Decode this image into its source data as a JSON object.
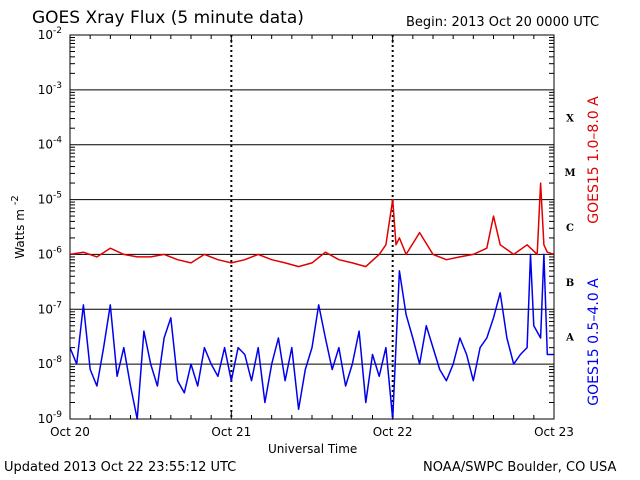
{
  "header": {
    "title": "GOES Xray Flux (5 minute data)",
    "begin": "Begin:  2013 Oct 20 0000 UTC"
  },
  "footer": {
    "updated": "Updated 2013 Oct 22 23:55:12 UTC",
    "credit": "NOAA/SWPC Boulder, CO USA"
  },
  "colors": {
    "long": "#e00000",
    "short": "#0000ee",
    "grid": "#000000"
  },
  "chart_data": {
    "type": "line",
    "title": "GOES Xray Flux (5 minute data)",
    "xlabel": "Universal Time",
    "ylabel": "Watts m",
    "ylabel_sup": "-2",
    "yscale": "log",
    "ylim": [
      1e-09,
      0.01
    ],
    "xlim": [
      "2013-10-20T00:00Z",
      "2013-10-23T00:00Z"
    ],
    "x_tick_labels": [
      "Oct 20",
      "Oct 21",
      "Oct 22",
      "Oct 23"
    ],
    "y_tick_labels": [
      {
        "base": "10",
        "exp": "-9"
      },
      {
        "base": "10",
        "exp": "-8"
      },
      {
        "base": "10",
        "exp": "-7"
      },
      {
        "base": "10",
        "exp": "-6"
      },
      {
        "base": "10",
        "exp": "-5"
      },
      {
        "base": "10",
        "exp": "-4"
      },
      {
        "base": "10",
        "exp": "-3"
      },
      {
        "base": "10",
        "exp": "-2"
      }
    ],
    "flare_classes": [
      {
        "label": "A",
        "value": 1e-08
      },
      {
        "label": "B",
        "value": 1e-07
      },
      {
        "label": "C",
        "value": 1e-06
      },
      {
        "label": "M",
        "value": 1e-05
      },
      {
        "label": "X",
        "value": 0.0001
      }
    ],
    "grid": true,
    "series": [
      {
        "name": "GOES15 1.0–8.0 A",
        "color": "#e00000",
        "x_hours": [
          0,
          2,
          4,
          6,
          8,
          10,
          12,
          14,
          16,
          18,
          20,
          22,
          24,
          26,
          28,
          30,
          32,
          34,
          36,
          38,
          40,
          42,
          44,
          46,
          47,
          48,
          48.5,
          49,
          50,
          52,
          54,
          56,
          58,
          60,
          62,
          63,
          64,
          66,
          68,
          69.5,
          70,
          70.5,
          71,
          72
        ],
        "y": [
          1e-06,
          1.1e-06,
          9e-07,
          1.3e-06,
          1e-06,
          9e-07,
          9e-07,
          1e-06,
          8e-07,
          7e-07,
          1e-06,
          8e-07,
          7e-07,
          8e-07,
          1e-06,
          8e-07,
          7e-07,
          6e-07,
          7e-07,
          1.1e-06,
          8e-07,
          7e-07,
          6e-07,
          1e-06,
          1.5e-06,
          1e-05,
          1.5e-06,
          2e-06,
          1e-06,
          2.5e-06,
          1e-06,
          8e-07,
          9e-07,
          1e-06,
          1.3e-06,
          5e-06,
          1.5e-06,
          1e-06,
          1.5e-06,
          1e-06,
          2e-05,
          1.5e-06,
          1.1e-06,
          1e-06
        ]
      },
      {
        "name": "GOES15 0.5–4.0 A",
        "color": "#0000ee",
        "x_hours": [
          0,
          1,
          2,
          3,
          4,
          5,
          6,
          7,
          8,
          9,
          10,
          11,
          12,
          13,
          14,
          15,
          16,
          17,
          18,
          19,
          20,
          21,
          22,
          23,
          24,
          25,
          26,
          27,
          28,
          29,
          30,
          31,
          32,
          33,
          34,
          35,
          36,
          37,
          38,
          39,
          40,
          41,
          42,
          43,
          44,
          45,
          46,
          47,
          48,
          49,
          50,
          51,
          52,
          53,
          54,
          55,
          56,
          57,
          58,
          59,
          60,
          61,
          62,
          63,
          64,
          65,
          66,
          67,
          68,
          68.5,
          69,
          70,
          70.5,
          71,
          72
        ],
        "y": [
          2e-08,
          1e-08,
          1.2e-07,
          8e-09,
          4e-09,
          2e-08,
          1.2e-07,
          6e-09,
          2e-08,
          4e-09,
          1e-09,
          4e-08,
          1e-08,
          4e-09,
          3e-08,
          7e-08,
          5e-09,
          3e-09,
          1e-08,
          4e-09,
          2e-08,
          1e-08,
          6e-09,
          2e-08,
          5e-09,
          2e-08,
          1.5e-08,
          5e-09,
          2e-08,
          2e-09,
          1e-08,
          3e-08,
          5e-09,
          2e-08,
          1.5e-09,
          8e-09,
          2e-08,
          1.2e-07,
          3e-08,
          8e-09,
          2e-08,
          4e-09,
          1e-08,
          4e-08,
          2e-09,
          1.5e-08,
          6e-09,
          2e-08,
          1e-09,
          5e-07,
          8e-08,
          3e-08,
          1e-08,
          5e-08,
          2e-08,
          8e-09,
          5e-09,
          1e-08,
          3e-08,
          1.5e-08,
          5e-09,
          2e-08,
          3e-08,
          7e-08,
          2e-07,
          3e-08,
          1e-08,
          1.5e-08,
          2e-08,
          1e-06,
          5e-08,
          3e-08,
          1e-06,
          1.5e-08,
          1.5e-08
        ]
      }
    ]
  }
}
